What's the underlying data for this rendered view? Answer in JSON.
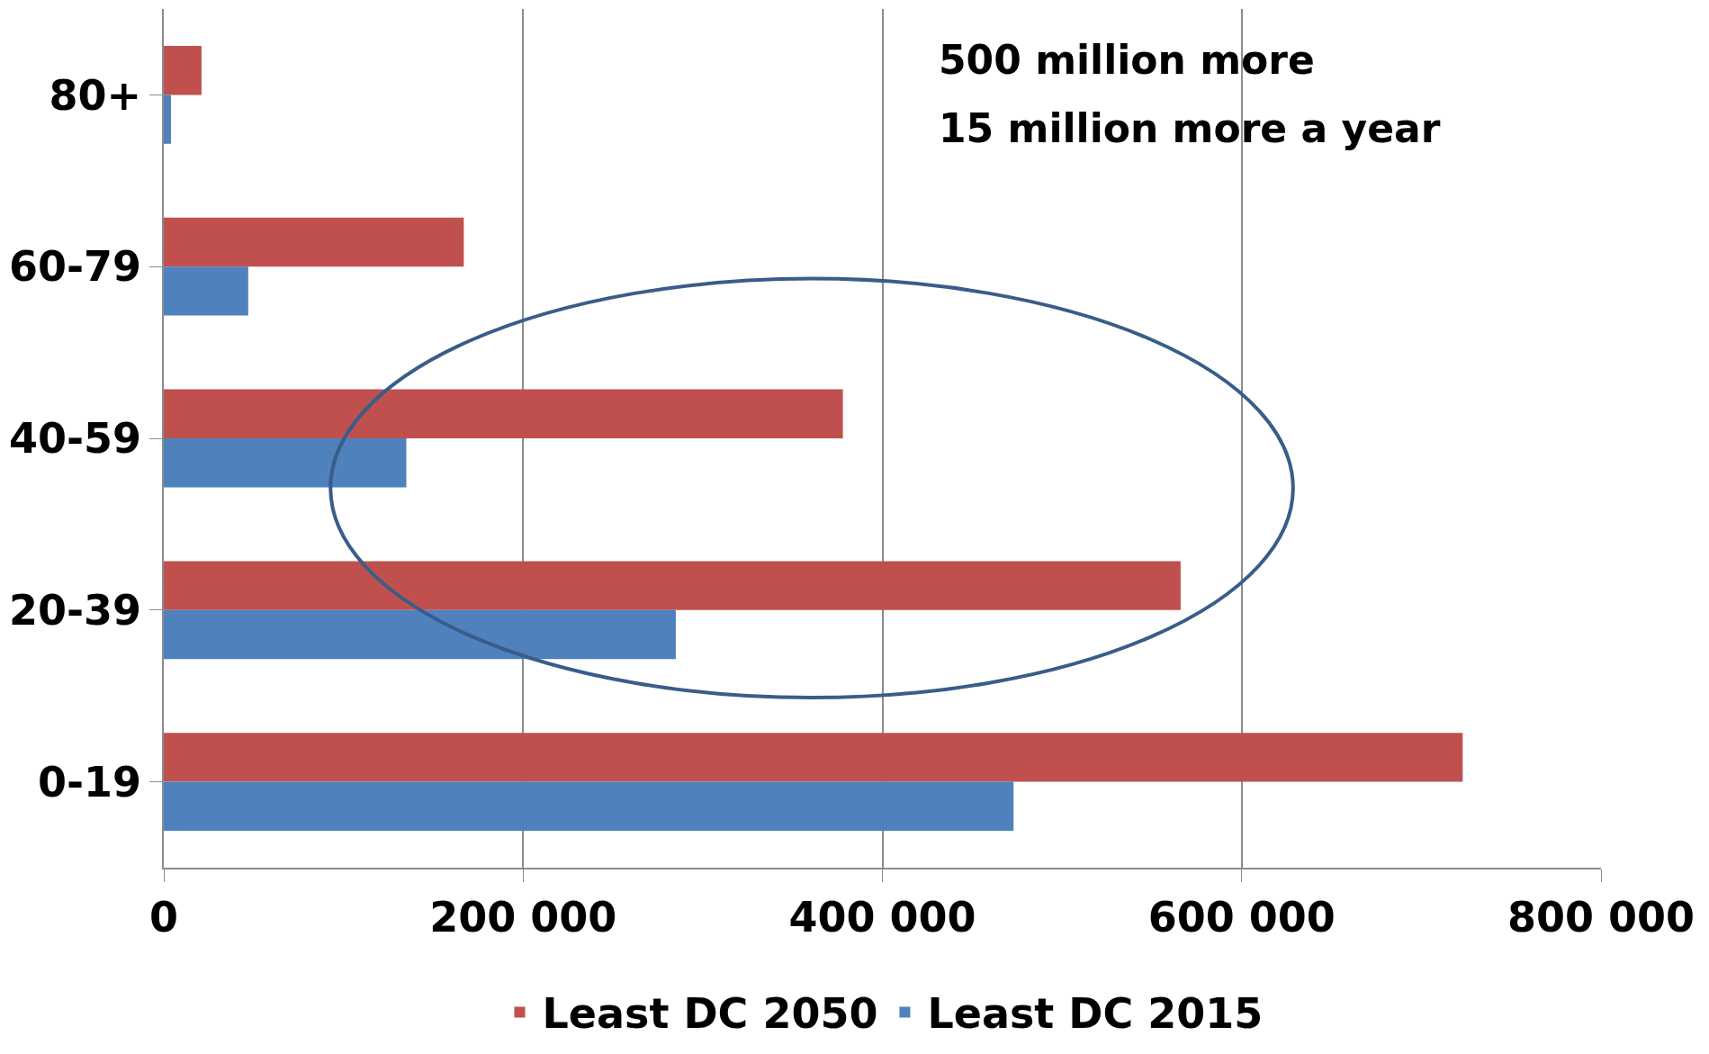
{
  "chart_data": {
    "type": "bar",
    "orientation": "horizontal",
    "categories": [
      "80+",
      "60-79",
      "40-59",
      "20-39",
      "0-19"
    ],
    "series": [
      {
        "name": "Least DC 2050",
        "color": "#c0504d",
        "values": [
          21000,
          167000,
          378000,
          566000,
          723000
        ]
      },
      {
        "name": "Least DC 2015",
        "color": "#4f81bd",
        "values": [
          4000,
          47000,
          135000,
          285000,
          473000
        ]
      }
    ],
    "xlim": [
      0,
      800000
    ],
    "xticks": [
      0,
      {
        "value": 200000,
        "label": "200 000"
      },
      {
        "value": 400000,
        "label": "400 000"
      },
      {
        "value": 600000,
        "label": "600 000"
      },
      {
        "value": 800000,
        "label": "800 000"
      }
    ],
    "grid": "x",
    "legend": "bottom",
    "annotations": [
      "500 million more",
      "15 million more a year"
    ]
  }
}
